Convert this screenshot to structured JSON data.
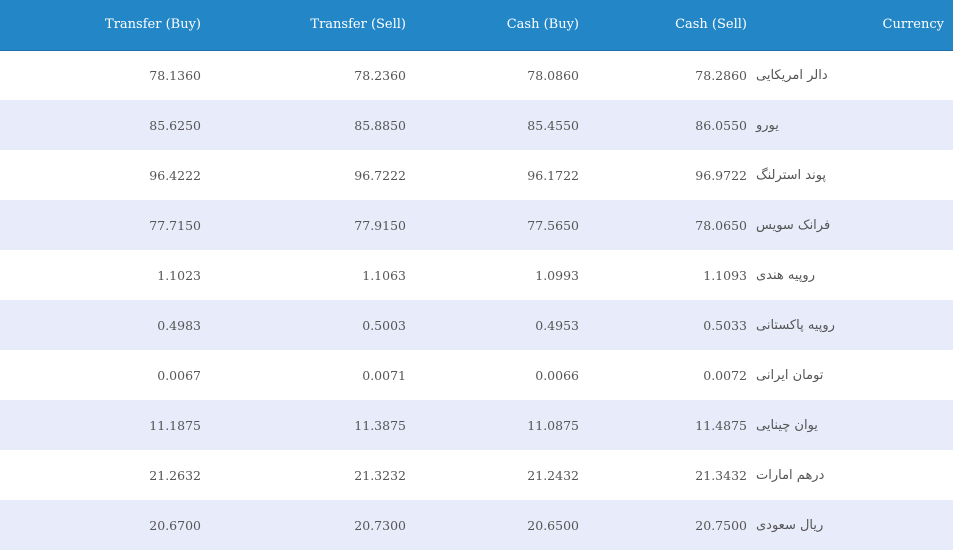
{
  "table": {
    "headers": {
      "transfer_buy": "Transfer (Buy)",
      "transfer_sell": "Transfer (Sell)",
      "cash_buy": "Cash (Buy)",
      "cash_sell": "Cash (Sell)",
      "currency": "Currency"
    },
    "rows": [
      {
        "transfer_buy": "78.1360",
        "transfer_sell": "78.2360",
        "cash_buy": "78.0860",
        "cash_sell": "78.2860",
        "currency": "دالر امریکایی"
      },
      {
        "transfer_buy": "85.6250",
        "transfer_sell": "85.8850",
        "cash_buy": "85.4550",
        "cash_sell": "86.0550",
        "currency": "یورو"
      },
      {
        "transfer_buy": "96.4222",
        "transfer_sell": "96.7222",
        "cash_buy": "96.1722",
        "cash_sell": "96.9722",
        "currency": "پوند استرلنگ"
      },
      {
        "transfer_buy": "77.7150",
        "transfer_sell": "77.9150",
        "cash_buy": "77.5650",
        "cash_sell": "78.0650",
        "currency": "فرانک سویس"
      },
      {
        "transfer_buy": "1.1023",
        "transfer_sell": "1.1063",
        "cash_buy": "1.0993",
        "cash_sell": "1.1093",
        "currency": "روپیه هندی"
      },
      {
        "transfer_buy": "0.4983",
        "transfer_sell": "0.5003",
        "cash_buy": "0.4953",
        "cash_sell": "0.5033",
        "currency": "روپیه پاکستانی"
      },
      {
        "transfer_buy": "0.0067",
        "transfer_sell": "0.0071",
        "cash_buy": "0.0066",
        "cash_sell": "0.0072",
        "currency": "تومان ایرانی"
      },
      {
        "transfer_buy": "11.1875",
        "transfer_sell": "11.3875",
        "cash_buy": "11.0875",
        "cash_sell": "11.4875",
        "currency": "یوان چینایی"
      },
      {
        "transfer_buy": "21.2632",
        "transfer_sell": "21.3232",
        "cash_buy": "21.2432",
        "cash_sell": "21.3432",
        "currency": "درهم امارات"
      },
      {
        "transfer_buy": "20.6700",
        "transfer_sell": "20.7300",
        "cash_buy": "20.6500",
        "cash_sell": "20.7500",
        "currency": "ریال سعودی"
      }
    ]
  },
  "colors": {
    "header_bg": "#2387c7",
    "row_alt_bg": "#e8ebfa",
    "text": "#555555"
  }
}
